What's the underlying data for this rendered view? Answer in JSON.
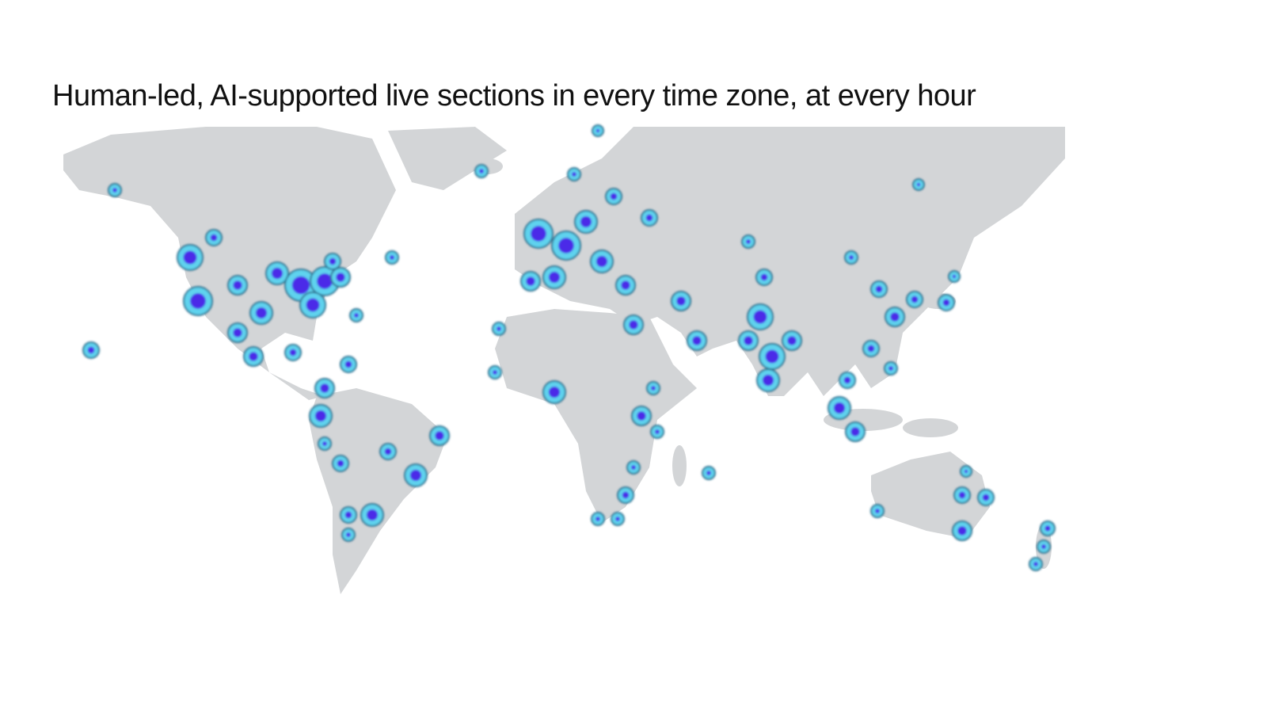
{
  "title": "Human-led, AI-supported live sections in every time zone, at every hour"
}
